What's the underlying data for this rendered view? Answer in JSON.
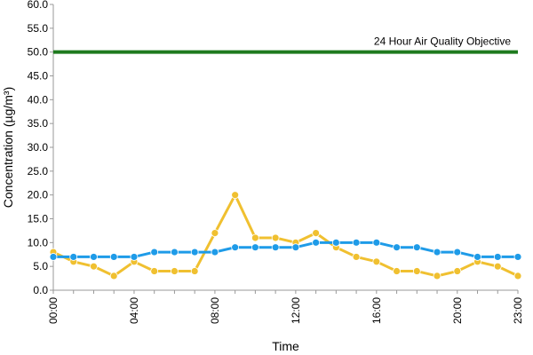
{
  "chart_data": {
    "type": "line",
    "title": "",
    "xlabel": "Time",
    "ylabel": "Concentration (µg/m³)",
    "ylim": [
      0,
      60
    ],
    "yticks": [
      "0.0",
      "5.0",
      "10.0",
      "15.0",
      "20.0",
      "25.0",
      "30.0",
      "35.0",
      "40.0",
      "45.0",
      "50.0",
      "55.0",
      "60.0"
    ],
    "x": [
      "00:00",
      "01:00",
      "02:00",
      "03:00",
      "04:00",
      "05:00",
      "06:00",
      "07:00",
      "08:00",
      "09:00",
      "10:00",
      "11:00",
      "12:00",
      "13:00",
      "14:00",
      "15:00",
      "16:00",
      "17:00",
      "18:00",
      "19:00",
      "20:00",
      "21:00",
      "22:00",
      "23:00"
    ],
    "xticks": [
      "00:00",
      "04:00",
      "08:00",
      "12:00",
      "16:00",
      "20:00",
      "23:00"
    ],
    "grid": false,
    "legend": "none",
    "series": [
      {
        "color": "#f0c030",
        "values": [
          8,
          6,
          5,
          3,
          6,
          4,
          4,
          4,
          12,
          20,
          11,
          11,
          10,
          12,
          9,
          7,
          6,
          4,
          4,
          3,
          4,
          6,
          5,
          3
        ]
      },
      {
        "color": "#1e9be8",
        "values": [
          7,
          7,
          7,
          7,
          7,
          8,
          8,
          8,
          8,
          9,
          9,
          9,
          9,
          10,
          10,
          10,
          10,
          9,
          9,
          8,
          8,
          7,
          7,
          7
        ]
      }
    ],
    "reference_line": {
      "value": 50,
      "label": "24 Hour Air Quality Objective",
      "color": "#1e7a1e"
    }
  }
}
